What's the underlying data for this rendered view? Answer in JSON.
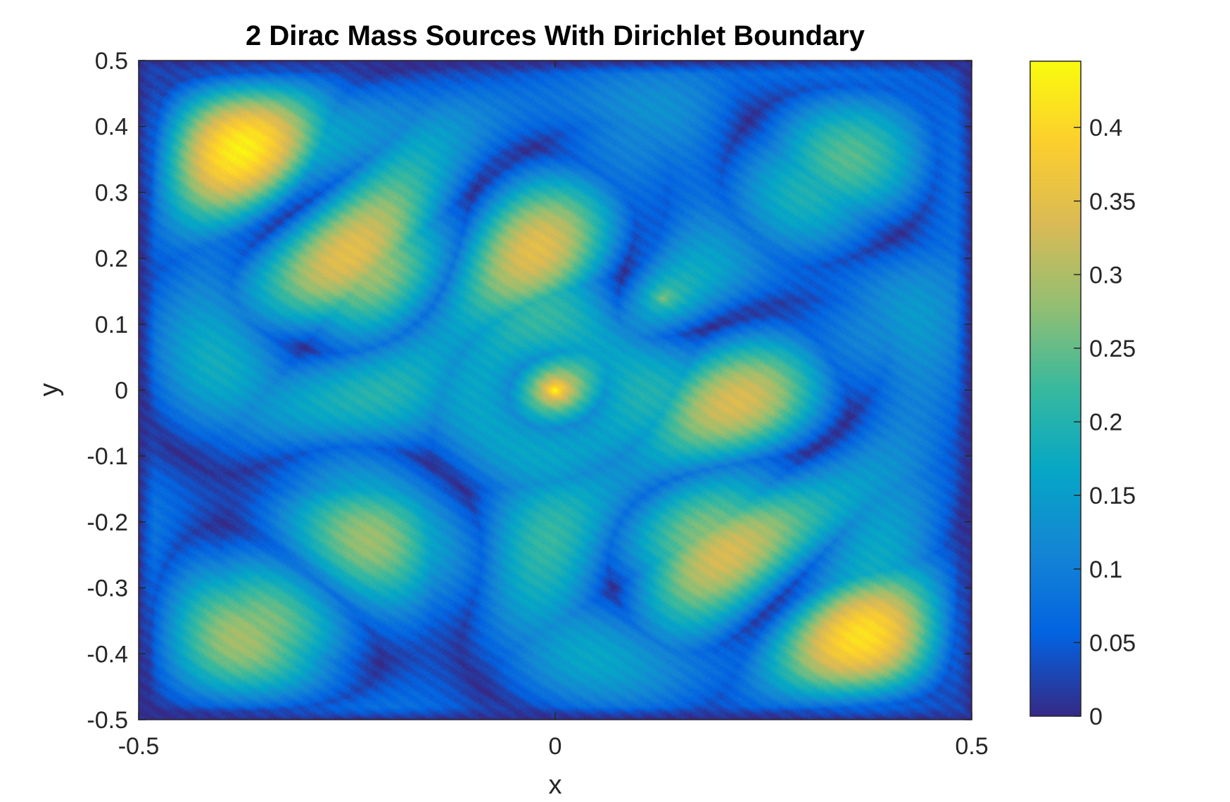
{
  "chart_data": {
    "type": "heatmap",
    "title": "2 Dirac Mass Sources With Dirichlet Boundary",
    "xlabel": "x",
    "ylabel": "y",
    "xlim": [
      -0.5,
      0.5
    ],
    "ylim": [
      -0.5,
      0.5
    ],
    "x_ticks": [
      -0.5,
      0,
      0.5
    ],
    "x_tick_labels": [
      "-0.5",
      "0",
      "0.5"
    ],
    "y_ticks": [
      0.5,
      0.4,
      0.3,
      0.2,
      0.1,
      0,
      -0.1,
      -0.2,
      -0.3,
      -0.4,
      -0.5
    ],
    "y_tick_labels": [
      "0.5",
      "0.4",
      "0.3",
      "0.2",
      "0.1",
      "0",
      "-0.1",
      "-0.2",
      "-0.3",
      "-0.4",
      "-0.5"
    ],
    "colorbar": {
      "range": [
        0,
        0.445
      ],
      "ticks": [
        0.4,
        0.35,
        0.3,
        0.25,
        0.2,
        0.15,
        0.1,
        0.05,
        0
      ],
      "tick_labels": [
        "0.4",
        "0.35",
        "0.3",
        "0.25",
        "0.2",
        "0.15",
        "0.1",
        "0.05",
        "0"
      ],
      "colormap": "parula",
      "colormap_stops": [
        "#352a87",
        "#0363e1",
        "#1485d4",
        "#06a7c6",
        "#38b99e",
        "#92bf73",
        "#d9ba56",
        "#fcce2e",
        "#f9fb0e"
      ]
    },
    "peak_value": 0.44,
    "peak_location": [
      0,
      0
    ],
    "grid": false
  }
}
